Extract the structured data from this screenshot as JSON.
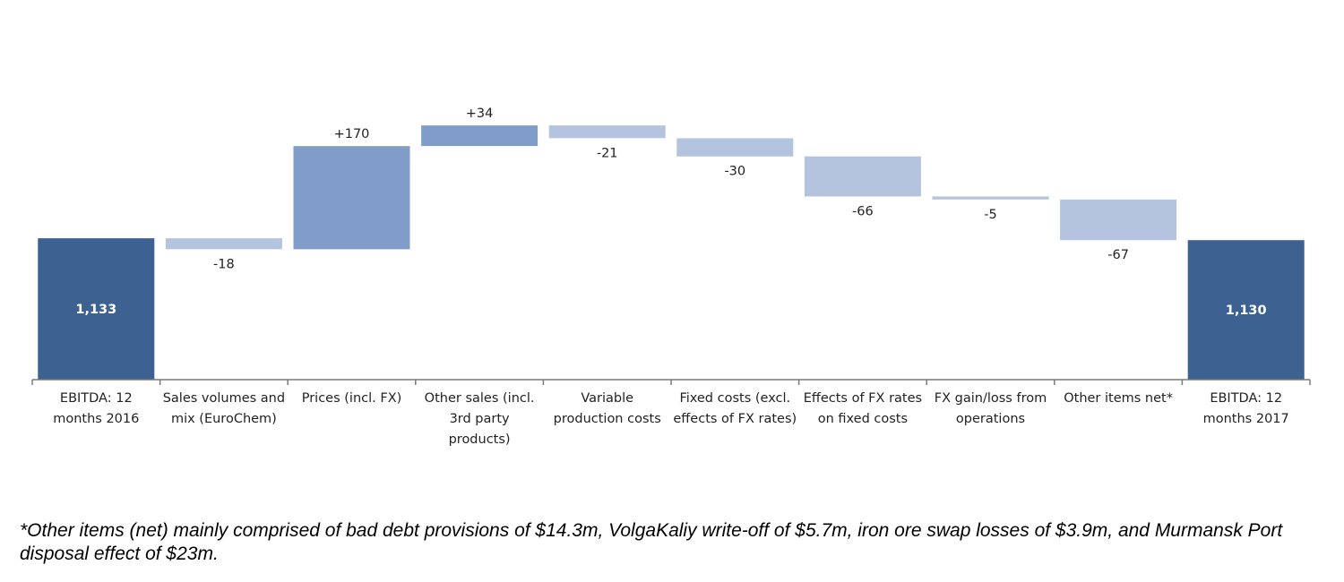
{
  "chart_data": {
    "type": "bar",
    "subtype": "waterfall",
    "categories": [
      [
        "EBITDA: 12",
        "months 2016"
      ],
      [
        "Sales volumes and",
        "mix (EuroChem)"
      ],
      [
        "Prices (incl. FX)"
      ],
      [
        "Other sales (incl.",
        "3rd party",
        "products)"
      ],
      [
        "Variable",
        "production costs"
      ],
      [
        "Fixed costs (excl.",
        "effects of FX rates)"
      ],
      [
        "Effects of FX rates",
        "on fixed costs"
      ],
      [
        "FX gain/loss from",
        "operations"
      ],
      [
        "Other items net*"
      ],
      [
        "EBITDA: 12",
        "months 2017"
      ]
    ],
    "values": [
      1133,
      -18,
      170,
      34,
      -21,
      -30,
      -66,
      -5,
      -67,
      1130
    ],
    "bar_kinds": [
      "total",
      "delta",
      "delta",
      "delta",
      "delta",
      "delta",
      "delta",
      "delta",
      "delta",
      "total"
    ],
    "value_labels": [
      "1,133",
      "-18",
      "+170",
      "+34",
      "-21",
      "-30",
      "-66",
      "-5",
      "-67",
      "1,130"
    ],
    "ylim": [
      900,
      1360
    ],
    "grid": false,
    "legend": "none",
    "colors": {
      "total": "#3d6291",
      "increase": "#7f9dc8",
      "decrease": "#b4c4de",
      "axis": "#7a7a7a"
    }
  },
  "footnote": "*Other items (net) mainly comprised of bad debt provisions of $14.3m, VolgaKaliy write-off of $5.7m, iron ore swap losses of $3.9m, and Murmansk Port disposal effect of $23m."
}
